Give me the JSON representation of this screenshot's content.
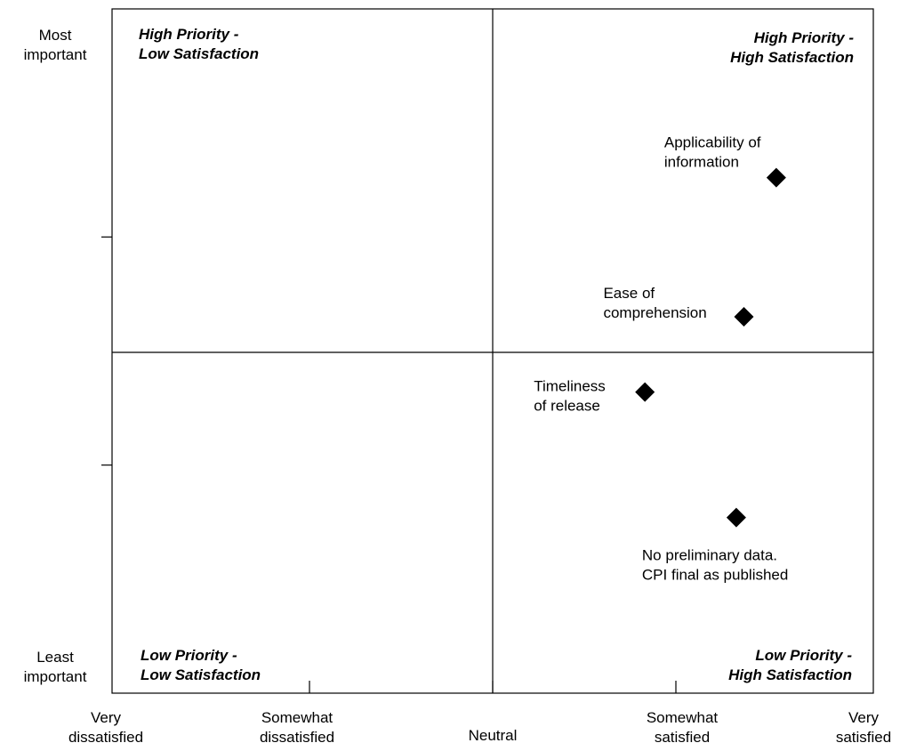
{
  "chart_data": {
    "type": "scatter",
    "title": "",
    "xlabel": "",
    "ylabel": "",
    "xlim": [
      0,
      4
    ],
    "ylim": [
      0,
      3
    ],
    "x_tick_labels": [
      {
        "value": 0,
        "lines": [
          "Very",
          "dissatisfied"
        ]
      },
      {
        "value": 1,
        "lines": [
          "Somewhat",
          "dissatisfied"
        ]
      },
      {
        "value": 2,
        "lines": [
          "Neutral"
        ]
      },
      {
        "value": 3,
        "lines": [
          "Somewhat",
          "satisfied"
        ]
      },
      {
        "value": 4,
        "lines": [
          "Very",
          "satisfied"
        ]
      }
    ],
    "y_tick_labels": [
      {
        "value": 3,
        "lines": [
          "Most",
          "important"
        ]
      },
      {
        "value": 0,
        "lines": [
          "Least",
          "important"
        ]
      }
    ],
    "quadrant_labels": [
      {
        "position": "top-left",
        "lines": [
          "High Priority -",
          "Low Satisfaction"
        ]
      },
      {
        "position": "top-right",
        "lines": [
          "High Priority -",
          "High Satisfaction"
        ]
      },
      {
        "position": "bottom-left",
        "lines": [
          "Low Priority -",
          "Low Satisfaction"
        ]
      },
      {
        "position": "bottom-right",
        "lines": [
          "Low Priority -",
          "High Satisfaction"
        ]
      }
    ],
    "points": [
      {
        "x": 3.49,
        "y": 2.26,
        "label_lines": [
          "Applicability of",
          "information"
        ],
        "label_side": "above-left"
      },
      {
        "x": 3.32,
        "y": 1.65,
        "label_lines": [
          "Ease of",
          "comprehension"
        ],
        "label_side": "left"
      },
      {
        "x": 2.8,
        "y": 1.32,
        "label_lines": [
          "Timeliness",
          "of release"
        ],
        "label_side": "left"
      },
      {
        "x": 3.28,
        "y": 0.77,
        "label_lines": [
          "No preliminary data.",
          "CPI final as published"
        ],
        "label_side": "below"
      }
    ],
    "grid": false,
    "legend": "none"
  }
}
